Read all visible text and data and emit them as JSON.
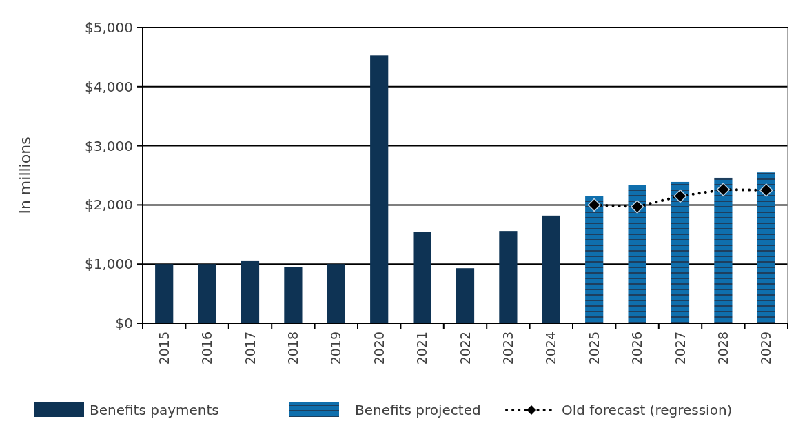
{
  "chart_data": {
    "type": "bar",
    "ylabel": "In millions",
    "categories": [
      "2015",
      "2016",
      "2017",
      "2018",
      "2019",
      "2020",
      "2021",
      "2022",
      "2023",
      "2024",
      "2025",
      "2026",
      "2027",
      "2028",
      "2029"
    ],
    "series": [
      {
        "name": "Benefits payments",
        "color": "#0e3354",
        "values": [
          1000,
          1000,
          1050,
          950,
          1000,
          4530,
          1550,
          930,
          1560,
          1820,
          null,
          null,
          null,
          null,
          null
        ]
      },
      {
        "name": "Benefits projected",
        "color": "#0f6fad",
        "values": [
          null,
          null,
          null,
          null,
          null,
          null,
          null,
          null,
          null,
          null,
          2150,
          2340,
          2390,
          2460,
          2550
        ]
      },
      {
        "name": "Old forecast (regression)",
        "type": "line",
        "color": "#000000",
        "marker": "diamond",
        "line_style": "dotted",
        "values": [
          null,
          null,
          null,
          null,
          null,
          null,
          null,
          null,
          null,
          null,
          2000,
          1970,
          2150,
          2260,
          2250
        ]
      }
    ],
    "ylim": [
      0,
      5000
    ],
    "yticks": [
      {
        "value": 0,
        "label": "$0"
      },
      {
        "value": 1000,
        "label": "$1,000"
      },
      {
        "value": 2000,
        "label": "$2,000"
      },
      {
        "value": 3000,
        "label": "$3,000"
      },
      {
        "value": 4000,
        "label": "$4,000"
      },
      {
        "value": 5000,
        "label": "$5,000"
      }
    ],
    "grid": "y",
    "legend": "bottom"
  }
}
